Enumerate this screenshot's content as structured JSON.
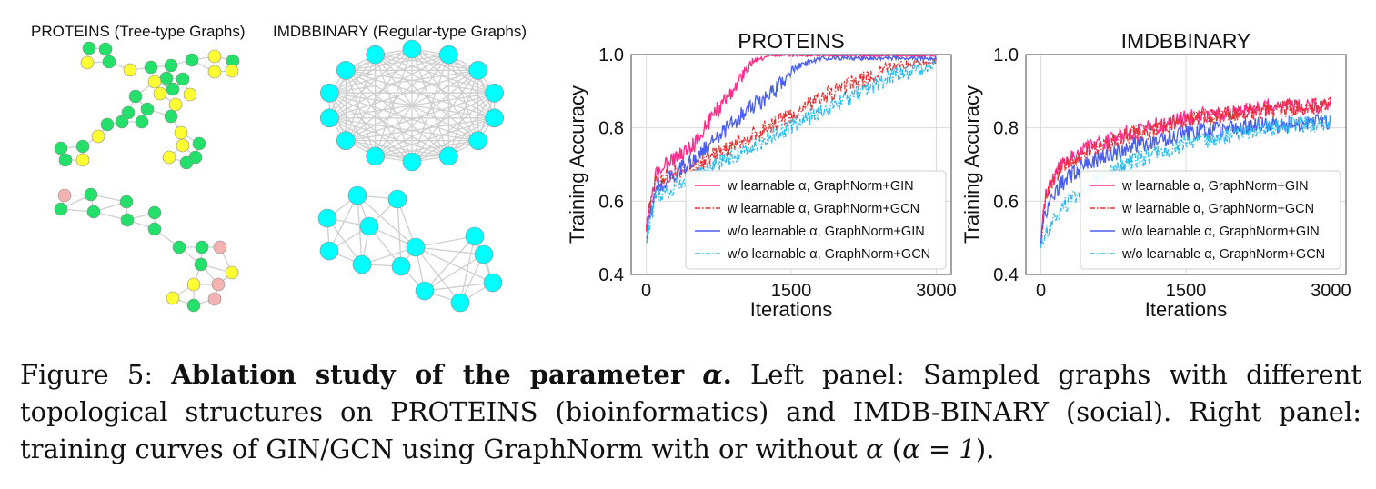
{
  "colors": {
    "gin_w": "#ff2d8a",
    "gcn_w": "#e83030",
    "gin_wo": "#4a5fef",
    "gcn_wo": "#2bbcef",
    "protein_green": "#22e06a",
    "protein_yellow": "#ffff33",
    "protein_pink": "#f4b3b3",
    "imdb_cyan": "#00ffff",
    "edge": "#cfcfcf",
    "grid": "#dcdcdc"
  },
  "left_panel": {
    "proteins_label": "PROTEINS (Tree-type Graphs)",
    "imdb_label": "IMDBBINARY (Regular-type Graphs)"
  },
  "chart_data": [
    {
      "type": "line",
      "title": "PROTEINS",
      "xlabel": "Iterations",
      "ylabel": "Training Accuracy",
      "xlim": [
        0,
        3000
      ],
      "ylim": [
        0.4,
        1.0
      ],
      "xticks": [
        0,
        1500,
        3000
      ],
      "yticks": [
        0.4,
        0.6,
        0.8,
        1.0
      ],
      "ytick_labels": [
        "0.4",
        "0.6",
        "0.8",
        "1.0"
      ],
      "grid": true,
      "legend_position": "lower-right",
      "series": [
        {
          "name": "w learnable α, GraphNorm+GIN",
          "color_key": "gin_w",
          "style": "solid",
          "x": [
            0,
            100,
            300,
            500,
            700,
            900,
            1100,
            1300,
            3000
          ],
          "y": [
            0.55,
            0.7,
            0.74,
            0.78,
            0.86,
            0.93,
            0.99,
            1.0,
            1.0
          ]
        },
        {
          "name": "w learnable α, GraphNorm+GCN",
          "color_key": "gcn_w",
          "style": "dashdot",
          "x": [
            0,
            100,
            500,
            1000,
            1500,
            2000,
            2500,
            3000
          ],
          "y": [
            0.55,
            0.68,
            0.72,
            0.79,
            0.86,
            0.93,
            0.98,
            0.99
          ]
        },
        {
          "name": "w/o learnable α, GraphNorm+GIN",
          "color_key": "gin_wo",
          "style": "solid",
          "x": [
            0,
            100,
            400,
            700,
            1000,
            1300,
            1550,
            1800,
            3000
          ],
          "y": [
            0.53,
            0.66,
            0.72,
            0.79,
            0.86,
            0.92,
            0.98,
            0.995,
            0.995
          ]
        },
        {
          "name": "w/o learnable α, GraphNorm+GCN",
          "color_key": "gcn_wo",
          "style": "dashdot",
          "x": [
            0,
            100,
            500,
            1000,
            1500,
            2000,
            2500,
            3000
          ],
          "y": [
            0.52,
            0.64,
            0.69,
            0.76,
            0.83,
            0.89,
            0.96,
            0.985
          ]
        }
      ]
    },
    {
      "type": "line",
      "title": "IMDBBINARY",
      "xlabel": "Iterations",
      "ylabel": "Training Accuracy",
      "xlim": [
        0,
        3000
      ],
      "ylim": [
        0.4,
        1.0
      ],
      "xticks": [
        0,
        1500,
        3000
      ],
      "yticks": [
        0.4,
        0.6,
        0.8,
        1.0
      ],
      "ytick_labels": [
        "0.4",
        "0.6",
        "0.8",
        "1.0"
      ],
      "grid": true,
      "legend_position": "lower-right",
      "series": [
        {
          "name": "w learnable α, GraphNorm+GIN",
          "color_key": "gin_w",
          "style": "solid",
          "x": [
            0,
            50,
            200,
            500,
            900,
            1500,
            2200,
            3000
          ],
          "y": [
            0.52,
            0.64,
            0.72,
            0.77,
            0.81,
            0.85,
            0.875,
            0.885
          ]
        },
        {
          "name": "w learnable α, GraphNorm+GCN",
          "color_key": "gcn_w",
          "style": "dashdot",
          "x": [
            0,
            50,
            200,
            500,
            900,
            1500,
            2200,
            3000
          ],
          "y": [
            0.52,
            0.63,
            0.71,
            0.76,
            0.8,
            0.845,
            0.87,
            0.885
          ]
        },
        {
          "name": "w/o learnable α, GraphNorm+GIN",
          "color_key": "gin_wo",
          "style": "solid",
          "x": [
            0,
            50,
            200,
            500,
            900,
            1500,
            2200,
            3000
          ],
          "y": [
            0.52,
            0.6,
            0.67,
            0.73,
            0.77,
            0.81,
            0.83,
            0.84
          ]
        },
        {
          "name": "w/o learnable α, GraphNorm+GCN",
          "color_key": "gcn_wo",
          "style": "dashdot",
          "x": [
            0,
            50,
            200,
            500,
            900,
            1500,
            2200,
            3000
          ],
          "y": [
            0.51,
            0.54,
            0.6,
            0.67,
            0.73,
            0.78,
            0.82,
            0.84
          ]
        }
      ]
    }
  ],
  "caption": {
    "label": "Figure 5:",
    "bold_title": "Ablation study of the parameter",
    "bold_title_symbol": "α",
    "bold_title_end": ".",
    "text_left": "Left panel: Sampled graphs with different topological structures on PROTEINS (bioinformatics) and IMDB-BINARY (social).",
    "text_right_before": "Right panel: training curves of GIN/GCN using GraphNorm with or without",
    "symbol_alpha": "α",
    "paren_open": "(",
    "eq_expr": "α = 1",
    "paren_close": ").",
    "closing": ""
  }
}
